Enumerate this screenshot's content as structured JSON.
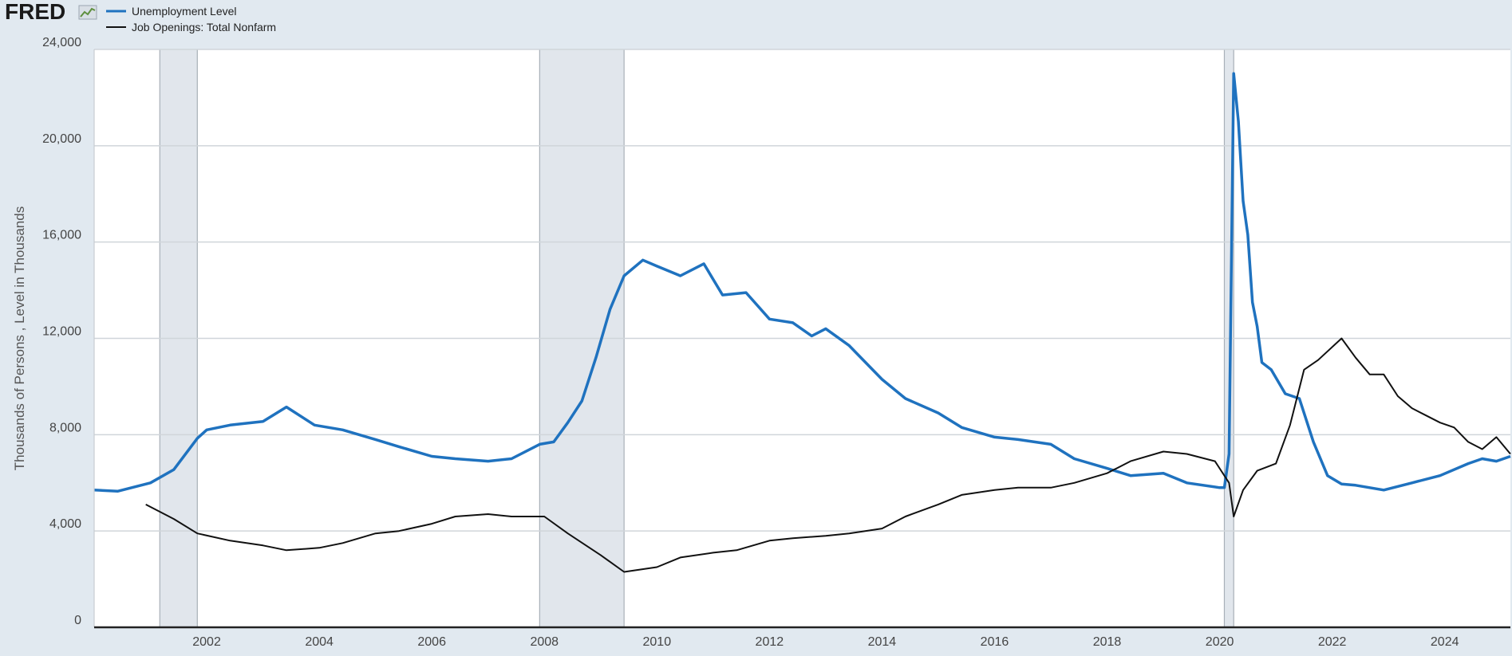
{
  "logo": {
    "text": "FRED",
    "icon": "fred-trend-icon"
  },
  "chart_data": {
    "type": "line",
    "title": "",
    "xlabel": "",
    "ylabel": "Thousands of Persons , Level in Thousands",
    "xlim": [
      "2000-01",
      "2025-03"
    ],
    "ylim": [
      0,
      24000
    ],
    "y_ticks": [
      0,
      4000,
      8000,
      12000,
      16000,
      20000,
      24000
    ],
    "y_tick_labels": [
      "0",
      "4,000",
      "8,000",
      "12,000",
      "16,000",
      "20,000",
      "24,000"
    ],
    "x_ticks": [
      "2002-01",
      "2004-01",
      "2006-01",
      "2008-01",
      "2010-01",
      "2012-01",
      "2014-01",
      "2016-01",
      "2018-01",
      "2020-01",
      "2022-01",
      "2024-01"
    ],
    "x_tick_labels": [
      "2002",
      "2004",
      "2006",
      "2008",
      "2010",
      "2012",
      "2014",
      "2016",
      "2018",
      "2020",
      "2022",
      "2024"
    ],
    "grid": true,
    "legend_position": "top-left",
    "recessions": [
      {
        "start": "2001-03",
        "end": "2001-11"
      },
      {
        "start": "2007-12",
        "end": "2009-06"
      },
      {
        "start": "2020-02",
        "end": "2020-04"
      }
    ],
    "series": [
      {
        "name": "Unemployment Level",
        "color": "#1f72bf",
        "points": [
          [
            "2000-01",
            5700
          ],
          [
            "2000-06",
            5650
          ],
          [
            "2001-01",
            6000
          ],
          [
            "2001-06",
            6550
          ],
          [
            "2001-11",
            7850
          ],
          [
            "2002-01",
            8200
          ],
          [
            "2002-06",
            8400
          ],
          [
            "2003-01",
            8550
          ],
          [
            "2003-06",
            9150
          ],
          [
            "2003-12",
            8400
          ],
          [
            "2004-06",
            8200
          ],
          [
            "2005-01",
            7800
          ],
          [
            "2005-06",
            7500
          ],
          [
            "2006-01",
            7100
          ],
          [
            "2006-06",
            7000
          ],
          [
            "2007-01",
            6900
          ],
          [
            "2007-06",
            7000
          ],
          [
            "2007-12",
            7600
          ],
          [
            "2008-03",
            7700
          ],
          [
            "2008-06",
            8500
          ],
          [
            "2008-09",
            9400
          ],
          [
            "2008-12",
            11200
          ],
          [
            "2009-03",
            13200
          ],
          [
            "2009-06",
            14600
          ],
          [
            "2009-10",
            15250
          ],
          [
            "2010-01",
            15000
          ],
          [
            "2010-06",
            14600
          ],
          [
            "2010-11",
            15100
          ],
          [
            "2011-03",
            13800
          ],
          [
            "2011-08",
            13900
          ],
          [
            "2012-01",
            12800
          ],
          [
            "2012-06",
            12650
          ],
          [
            "2012-10",
            12100
          ],
          [
            "2013-01",
            12400
          ],
          [
            "2013-06",
            11700
          ],
          [
            "2014-01",
            10300
          ],
          [
            "2014-06",
            9500
          ],
          [
            "2015-01",
            8900
          ],
          [
            "2015-06",
            8300
          ],
          [
            "2016-01",
            7900
          ],
          [
            "2016-06",
            7800
          ],
          [
            "2017-01",
            7600
          ],
          [
            "2017-06",
            7000
          ],
          [
            "2018-01",
            6600
          ],
          [
            "2018-06",
            6300
          ],
          [
            "2019-01",
            6400
          ],
          [
            "2019-06",
            6000
          ],
          [
            "2020-01",
            5800
          ],
          [
            "2020-02",
            5800
          ],
          [
            "2020-03",
            7200
          ],
          [
            "2020-04",
            23000
          ],
          [
            "2020-05",
            21000
          ],
          [
            "2020-06",
            17700
          ],
          [
            "2020-07",
            16300
          ],
          [
            "2020-08",
            13500
          ],
          [
            "2020-09",
            12500
          ],
          [
            "2020-10",
            11000
          ],
          [
            "2020-12",
            10700
          ],
          [
            "2021-03",
            9700
          ],
          [
            "2021-06",
            9500
          ],
          [
            "2021-09",
            7700
          ],
          [
            "2021-12",
            6300
          ],
          [
            "2022-03",
            5950
          ],
          [
            "2022-06",
            5900
          ],
          [
            "2022-12",
            5700
          ],
          [
            "2023-06",
            6000
          ],
          [
            "2023-12",
            6300
          ],
          [
            "2024-06",
            6800
          ],
          [
            "2024-09",
            7000
          ],
          [
            "2024-12",
            6900
          ],
          [
            "2025-03",
            7100
          ]
        ]
      },
      {
        "name": "Job Openings: Total Nonfarm",
        "color": "#111111",
        "points": [
          [
            "2000-12",
            5100
          ],
          [
            "2001-03",
            4800
          ],
          [
            "2001-06",
            4500
          ],
          [
            "2001-11",
            3900
          ],
          [
            "2002-06",
            3600
          ],
          [
            "2003-01",
            3400
          ],
          [
            "2003-06",
            3200
          ],
          [
            "2004-01",
            3300
          ],
          [
            "2004-06",
            3500
          ],
          [
            "2005-01",
            3900
          ],
          [
            "2005-06",
            4000
          ],
          [
            "2006-01",
            4300
          ],
          [
            "2006-06",
            4600
          ],
          [
            "2007-01",
            4700
          ],
          [
            "2007-06",
            4600
          ],
          [
            "2008-01",
            4600
          ],
          [
            "2008-06",
            3900
          ],
          [
            "2009-01",
            3000
          ],
          [
            "2009-06",
            2300
          ],
          [
            "2010-01",
            2500
          ],
          [
            "2010-06",
            2900
          ],
          [
            "2011-01",
            3100
          ],
          [
            "2011-06",
            3200
          ],
          [
            "2012-01",
            3600
          ],
          [
            "2012-06",
            3700
          ],
          [
            "2013-01",
            3800
          ],
          [
            "2013-06",
            3900
          ],
          [
            "2014-01",
            4100
          ],
          [
            "2014-06",
            4600
          ],
          [
            "2015-01",
            5100
          ],
          [
            "2015-06",
            5500
          ],
          [
            "2016-01",
            5700
          ],
          [
            "2016-06",
            5800
          ],
          [
            "2017-01",
            5800
          ],
          [
            "2017-06",
            6000
          ],
          [
            "2018-01",
            6400
          ],
          [
            "2018-06",
            6900
          ],
          [
            "2019-01",
            7300
          ],
          [
            "2019-06",
            7200
          ],
          [
            "2019-12",
            6900
          ],
          [
            "2020-03",
            6000
          ],
          [
            "2020-04",
            4600
          ],
          [
            "2020-06",
            5700
          ],
          [
            "2020-09",
            6500
          ],
          [
            "2021-01",
            6800
          ],
          [
            "2021-04",
            8400
          ],
          [
            "2021-07",
            10700
          ],
          [
            "2021-10",
            11100
          ],
          [
            "2022-03",
            12000
          ],
          [
            "2022-06",
            11200
          ],
          [
            "2022-09",
            10500
          ],
          [
            "2022-12",
            10500
          ],
          [
            "2023-03",
            9600
          ],
          [
            "2023-06",
            9100
          ],
          [
            "2023-09",
            8800
          ],
          [
            "2023-12",
            8500
          ],
          [
            "2024-03",
            8300
          ],
          [
            "2024-06",
            7700
          ],
          [
            "2024-09",
            7400
          ],
          [
            "2024-12",
            7900
          ],
          [
            "2025-03",
            7200
          ]
        ]
      }
    ]
  }
}
